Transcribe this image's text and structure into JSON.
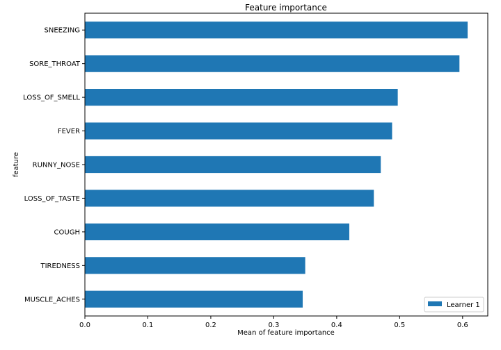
{
  "chart_data": {
    "type": "bar",
    "orientation": "horizontal",
    "title": "Feature importance",
    "xlabel": "Mean of feature importance",
    "ylabel": "feature",
    "xlim": [
      0,
      0.64
    ],
    "xticks": [
      0.0,
      0.1,
      0.2,
      0.3,
      0.4,
      0.5,
      0.6
    ],
    "xtick_labels": [
      "0.0",
      "0.1",
      "0.2",
      "0.3",
      "0.4",
      "0.5",
      "0.6"
    ],
    "categories": [
      "SNEEZING",
      "SORE_THROAT",
      "LOSS_OF_SMELL",
      "FEVER",
      "RUNNY_NOSE",
      "LOSS_OF_TASTE",
      "COUGH",
      "TIREDNESS",
      "MUSCLE_ACHES"
    ],
    "series": [
      {
        "name": "Learner 1",
        "color": "#1f77b4",
        "values": [
          0.608,
          0.595,
          0.497,
          0.488,
          0.47,
          0.459,
          0.42,
          0.35,
          0.346
        ]
      }
    ],
    "legend": {
      "position": "bottom-right",
      "entries": [
        "Learner 1"
      ]
    },
    "grid": false
  }
}
